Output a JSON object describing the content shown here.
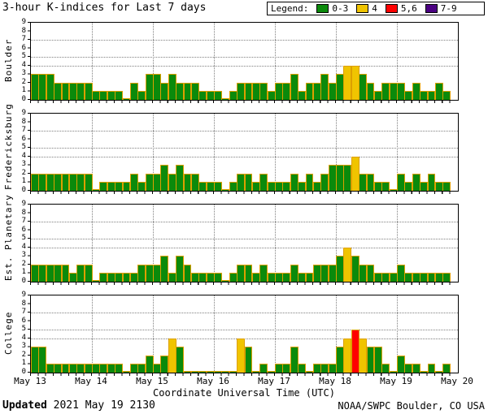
{
  "title": "3-hour K-indices for Last 7 days",
  "legend": {
    "label": "Legend:",
    "items": [
      {
        "label": "0-3",
        "color": "#0b8a0b"
      },
      {
        "label": "4",
        "color": "#f0c400"
      },
      {
        "label": "5,6",
        "color": "#ff0000"
      },
      {
        "label": "7-9",
        "color": "#4b0082"
      }
    ]
  },
  "chart_data": {
    "type": "bar",
    "title": "3-hour K-indices for Last 7 days",
    "interval": "3h",
    "bars_per_day": 8,
    "ylim": [
      0,
      9
    ],
    "y_tick_labels": [
      "9",
      "8",
      "7",
      "6",
      "5",
      "4",
      "3",
      "2",
      "1",
      "0"
    ],
    "h_gridlines_at_k": [
      4,
      5,
      7
    ],
    "x_tick_labels": [
      "May 13",
      "May 14",
      "May 15",
      "May 16",
      "May 17",
      "May 18",
      "May 19",
      "May 20"
    ],
    "xlabel": "Coordinate Universal Time (UTC)",
    "color_bins": {
      "0-3": "#0b8a0b",
      "4": "#f0c400",
      "5,6": "#ff0000",
      "7-9": "#4b0082"
    },
    "bar_outline": "#dd9f00",
    "series": [
      {
        "name": "Boulder",
        "values": [
          3,
          3,
          3,
          2,
          2,
          2,
          2,
          2,
          1,
          1,
          1,
          1,
          0,
          2,
          1,
          3,
          3,
          2,
          3,
          2,
          2,
          2,
          1,
          1,
          1,
          0,
          1,
          2,
          2,
          2,
          2,
          1,
          2,
          2,
          3,
          1,
          2,
          2,
          3,
          2,
          3,
          4,
          4,
          3,
          2,
          1,
          2,
          2,
          2,
          1,
          2,
          1,
          1,
          2,
          1
        ]
      },
      {
        "name": "Fredericksburg",
        "values": [
          2,
          2,
          2,
          2,
          2,
          2,
          2,
          2,
          0,
          1,
          1,
          1,
          1,
          2,
          1,
          2,
          2,
          3,
          2,
          3,
          2,
          2,
          1,
          1,
          1,
          0,
          1,
          2,
          2,
          1,
          2,
          1,
          1,
          1,
          2,
          1,
          2,
          1,
          2,
          3,
          3,
          3,
          4,
          2,
          2,
          1,
          1,
          0,
          2,
          1,
          2,
          1,
          2,
          1,
          1
        ]
      },
      {
        "name": "Est. Planetary",
        "values": [
          2,
          2,
          2,
          2,
          2,
          1,
          2,
          2,
          0,
          1,
          1,
          1,
          1,
          1,
          2,
          2,
          2,
          3,
          1,
          3,
          2,
          1,
          1,
          1,
          1,
          0,
          1,
          2,
          2,
          1,
          2,
          1,
          1,
          1,
          2,
          1,
          1,
          2,
          2,
          2,
          3,
          4,
          3,
          2,
          2,
          1,
          1,
          1,
          2,
          1,
          1,
          1,
          1,
          1,
          1
        ]
      },
      {
        "name": "College",
        "values": [
          3,
          3,
          1,
          1,
          1,
          1,
          1,
          1,
          1,
          1,
          1,
          1,
          0,
          1,
          1,
          2,
          1,
          2,
          4,
          3,
          0,
          0,
          0,
          0,
          0,
          0,
          0,
          4,
          3,
          0,
          1,
          0,
          1,
          1,
          3,
          1,
          0,
          1,
          1,
          1,
          3,
          4,
          5,
          4,
          3,
          3,
          1,
          0,
          2,
          1,
          1,
          0,
          1,
          0,
          1
        ]
      }
    ]
  },
  "x_axis": {
    "title": "Coordinate Universal Time (UTC)"
  },
  "footer": {
    "updated_label": "Updated",
    "updated_value": " 2021 May 19 2130",
    "credit": "NOAA/SWPC Boulder, CO USA"
  }
}
